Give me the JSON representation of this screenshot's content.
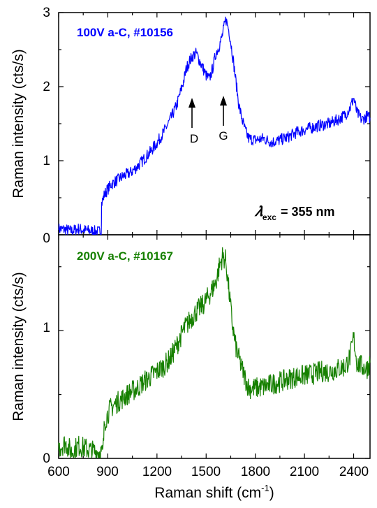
{
  "chart_data": [
    {
      "type": "line",
      "panel": "top",
      "ylabel": "Raman intensity (cts/s)",
      "xlim": [
        600,
        2500
      ],
      "ylim": [
        0,
        3
      ],
      "yticks": [
        "0",
        "1",
        "2",
        "3"
      ],
      "series": [
        {
          "name": "100V a-C, #10156",
          "color": "#0000ff",
          "x": [
            600,
            640,
            680,
            720,
            760,
            800,
            840,
            860,
            862,
            880,
            920,
            960,
            1000,
            1040,
            1080,
            1120,
            1160,
            1200,
            1240,
            1280,
            1320,
            1360,
            1380,
            1400,
            1420,
            1440,
            1460,
            1480,
            1500,
            1520,
            1540,
            1560,
            1580,
            1600,
            1620,
            1640,
            1660,
            1680,
            1700,
            1720,
            1740,
            1760,
            1800,
            1850,
            1900,
            1950,
            2000,
            2050,
            2100,
            2150,
            2200,
            2250,
            2300,
            2350,
            2380,
            2400,
            2420,
            2450,
            2480,
            2500
          ],
          "values": [
            0.08,
            0.07,
            0.05,
            0.08,
            0.06,
            0.05,
            0.04,
            0.05,
            0.42,
            0.55,
            0.68,
            0.74,
            0.8,
            0.84,
            0.92,
            1.02,
            1.12,
            1.24,
            1.38,
            1.55,
            1.75,
            2.05,
            2.25,
            2.35,
            2.42,
            2.45,
            2.35,
            2.25,
            2.15,
            2.1,
            2.25,
            2.45,
            2.55,
            2.7,
            2.92,
            2.75,
            2.45,
            2.1,
            1.75,
            1.55,
            1.4,
            1.3,
            1.28,
            1.3,
            1.25,
            1.28,
            1.32,
            1.38,
            1.42,
            1.45,
            1.48,
            1.5,
            1.55,
            1.62,
            1.72,
            1.85,
            1.65,
            1.55,
            1.6,
            1.58
          ]
        }
      ],
      "annotations": [
        {
          "text": "D",
          "x": 1410
        },
        {
          "text": "G",
          "x": 1600
        },
        {
          "text": "𝜆",
          "sub": "exc",
          "tail": "= 355 nm"
        }
      ]
    },
    {
      "type": "line",
      "panel": "bottom",
      "xlabel": "Raman shift (cm",
      "xlabel_sup": "-1",
      "xlabel_tail": ")",
      "ylabel": "Raman intensity (cts/s)",
      "xlim": [
        600,
        2500
      ],
      "ylim": [
        0,
        1.75
      ],
      "xticks": [
        "600",
        "900",
        "1200",
        "1500",
        "1800",
        "2100",
        "2400"
      ],
      "yticks": [
        "0",
        "1"
      ],
      "series": [
        {
          "name": "200V a-C, #10167",
          "color": "#168000",
          "x": [
            600,
            640,
            680,
            720,
            760,
            800,
            840,
            870,
            880,
            900,
            920,
            960,
            1000,
            1040,
            1080,
            1120,
            1160,
            1200,
            1240,
            1280,
            1320,
            1360,
            1400,
            1440,
            1480,
            1520,
            1560,
            1580,
            1600,
            1620,
            1640,
            1660,
            1680,
            1700,
            1720,
            1740,
            1760,
            1800,
            1850,
            1900,
            1950,
            2000,
            2050,
            2100,
            2150,
            2200,
            2250,
            2300,
            2350,
            2380,
            2400,
            2420,
            2450,
            2480,
            2500
          ],
          "values": [
            0.08,
            0.12,
            0.05,
            0.1,
            0.08,
            0.06,
            0.05,
            0.04,
            0.28,
            0.35,
            0.4,
            0.44,
            0.48,
            0.52,
            0.55,
            0.6,
            0.64,
            0.68,
            0.72,
            0.78,
            0.88,
            1.0,
            1.08,
            1.15,
            1.2,
            1.28,
            1.38,
            1.5,
            1.58,
            1.55,
            1.3,
            1.05,
            0.88,
            0.78,
            0.7,
            0.62,
            0.55,
            0.55,
            0.56,
            0.58,
            0.6,
            0.62,
            0.64,
            0.65,
            0.66,
            0.68,
            0.68,
            0.7,
            0.72,
            0.8,
            0.95,
            0.75,
            0.72,
            0.7,
            0.75
          ]
        }
      ]
    }
  ]
}
